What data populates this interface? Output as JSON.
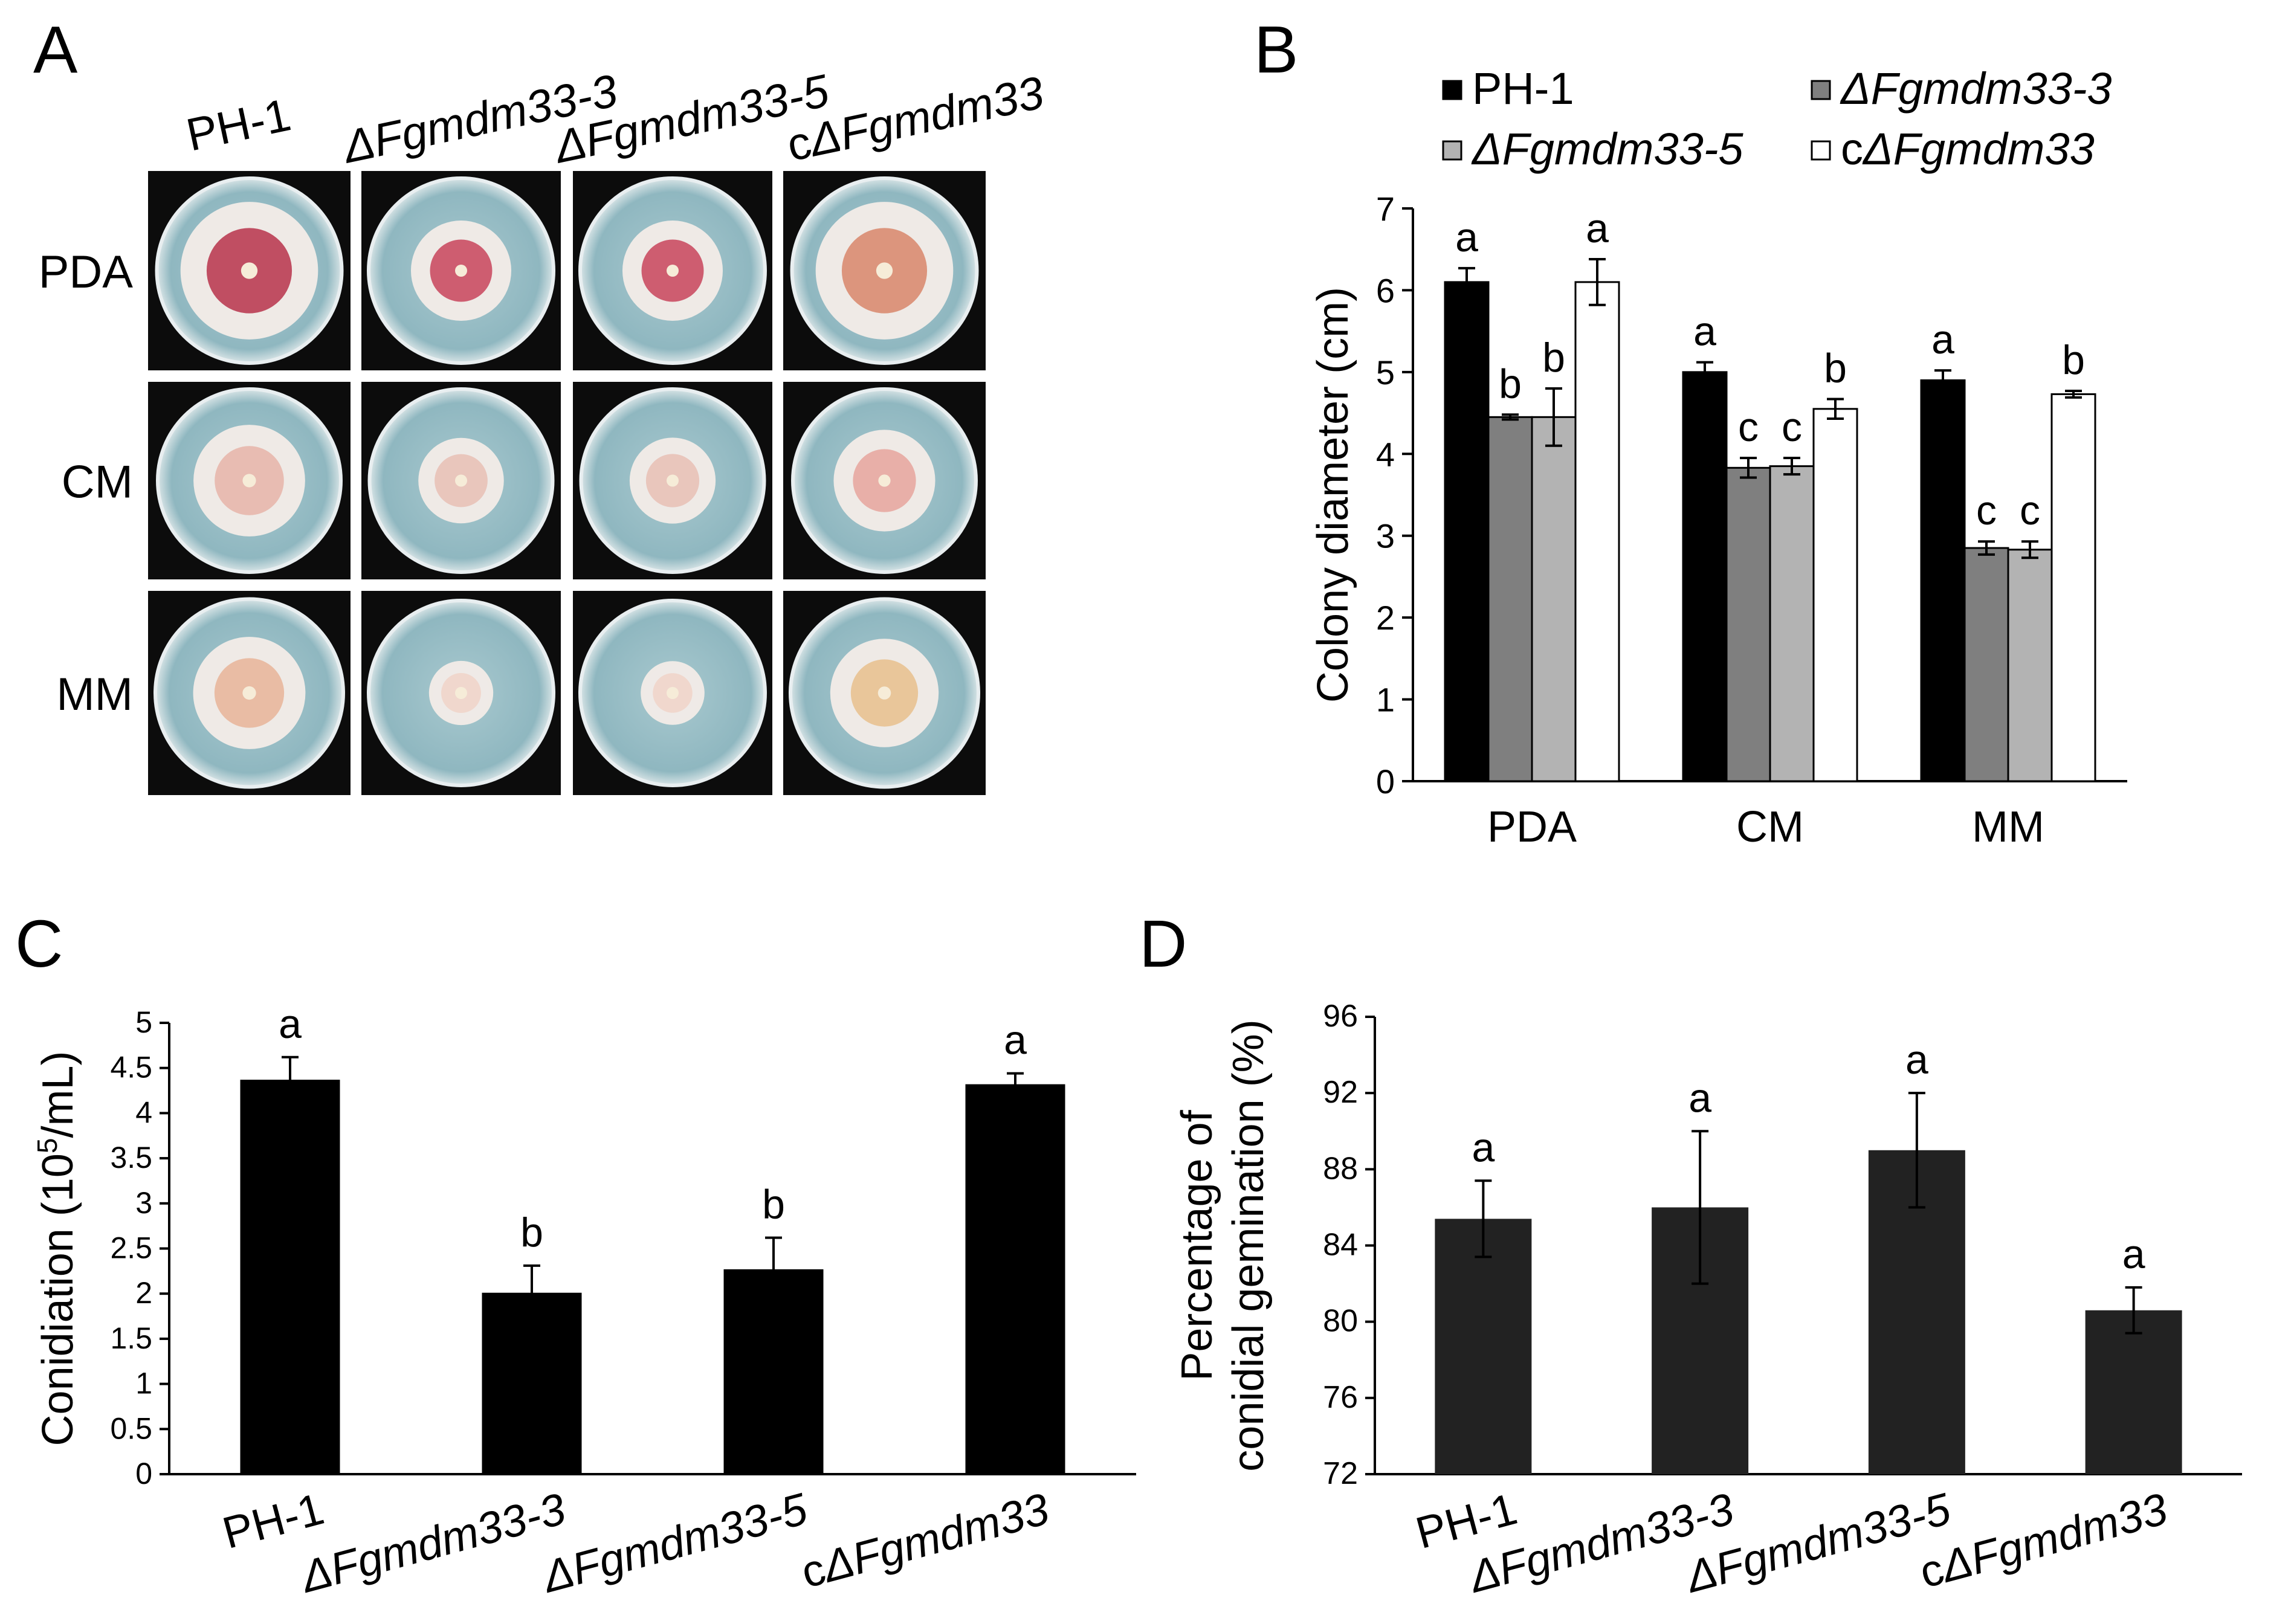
{
  "panel_a": {
    "label": "A",
    "strains": [
      "PH-1",
      "ΔFgmdm33-3",
      "ΔFgmdm33-5",
      "cΔFgmdm33"
    ],
    "media": [
      "PDA",
      "CM",
      "MM"
    ],
    "colony_colors": {
      "PDA": [
        "#b7334a",
        "#c8445a",
        "#c8445a",
        "#d8866a"
      ],
      "CM": [
        "#e6b4a8",
        "#e8c0b4",
        "#e8c0b4",
        "#e6a49c"
      ],
      "MM": [
        "#e8b498",
        "#f0d4c8",
        "#f0d4c8",
        "#e8c08c"
      ]
    },
    "colony_size": {
      "PDA": [
        6.1,
        4.45,
        4.45,
        6.1
      ],
      "CM": [
        5.0,
        3.83,
        3.85,
        4.55
      ],
      "MM": [
        4.9,
        2.85,
        2.83,
        4.73
      ]
    }
  },
  "chart_data": [
    {
      "panel": "B",
      "type": "bar",
      "title": "",
      "xlabel": "",
      "ylabel": "Colony diameter (cm)",
      "categories": [
        "PDA",
        "CM",
        "MM"
      ],
      "ylim": [
        0,
        7
      ],
      "yticks": [
        "0",
        "1",
        "2",
        "3",
        "4",
        "5",
        "6",
        "7"
      ],
      "legend_position": "top",
      "series": [
        {
          "name": "PH-1",
          "color": "#000000",
          "values": [
            6.1,
            5.0,
            4.9
          ],
          "errors": [
            0.17,
            0.12,
            0.12
          ],
          "letters": [
            "a",
            "a",
            "a"
          ]
        },
        {
          "name": "ΔFgmdm33-3",
          "color": "#7f7f7f",
          "values": [
            4.45,
            3.83,
            2.85
          ],
          "errors": [
            0.03,
            0.12,
            0.08
          ],
          "letters": [
            "b",
            "c",
            "c"
          ]
        },
        {
          "name": "ΔFgmdm33-5",
          "color": "#b3b3b3",
          "values": [
            4.45,
            3.85,
            2.83
          ],
          "errors": [
            0.35,
            0.1,
            0.1
          ],
          "letters": [
            "b",
            "c",
            "c"
          ]
        },
        {
          "name": "cΔFgmdm33",
          "color": "#ffffff",
          "values": [
            6.1,
            4.55,
            4.73
          ],
          "errors": [
            0.28,
            0.12,
            0.04
          ],
          "letters": [
            "a",
            "b",
            "b"
          ]
        }
      ]
    },
    {
      "panel": "C",
      "type": "bar",
      "title": "",
      "xlabel": "",
      "ylabel_main": "Conidiation (10",
      "ylabel_sup": "5",
      "ylabel_tail": "/mL)",
      "categories": [
        "PH-1",
        "ΔFgmdm33-3",
        "ΔFgmdm33-5",
        "cΔFgmdm33"
      ],
      "values": [
        4.37,
        2.01,
        2.27,
        4.32
      ],
      "errors": [
        0.25,
        0.3,
        0.35,
        0.12
      ],
      "letters": [
        "a",
        "b",
        "b",
        "a"
      ],
      "color": "#000000",
      "ylim": [
        0,
        5
      ],
      "yticks": [
        "0",
        "0.5",
        "1",
        "1.5",
        "2",
        "2.5",
        "3",
        "3.5",
        "4",
        "4.5",
        "5"
      ]
    },
    {
      "panel": "D",
      "type": "bar",
      "title": "",
      "xlabel": "",
      "ylabel_line1": "Percentage of",
      "ylabel_line2": "conidial gemination (%)",
      "categories": [
        "PH-1",
        "ΔFgmdm33-3",
        "ΔFgmdm33-5",
        "cΔFgmdm33"
      ],
      "values": [
        85.4,
        86.0,
        89.0,
        80.6
      ],
      "errors": [
        2.0,
        4.0,
        3.0,
        1.2
      ],
      "letters": [
        "a",
        "a",
        "a",
        "a"
      ],
      "color": "#222222",
      "ylim": [
        72,
        96
      ],
      "yticks": [
        "72",
        "76",
        "80",
        "84",
        "88",
        "92",
        "96"
      ]
    }
  ]
}
